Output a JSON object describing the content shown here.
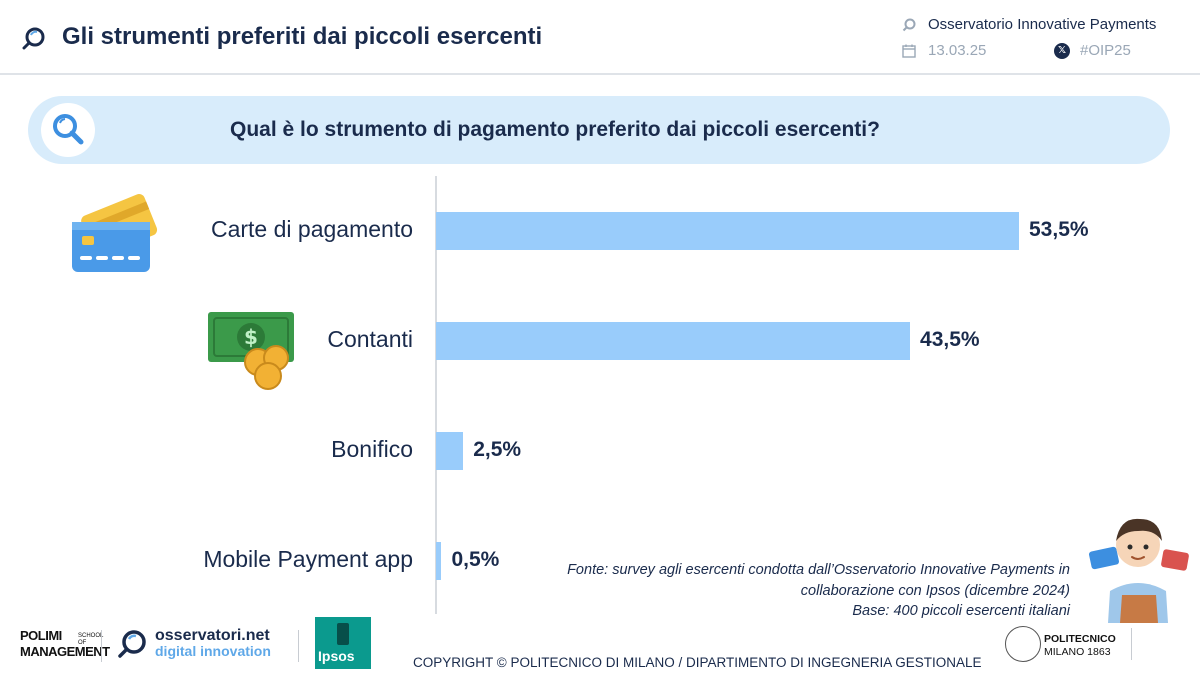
{
  "header": {
    "title": "Gli strumenti preferiti dai piccoli esercenti",
    "observatory": "Osservatorio Innovative Payments",
    "date": "13.03.25",
    "hashtag": "#OIP25"
  },
  "question": "Qual è lo strumento di pagamento preferito dai piccoli esercenti?",
  "chart_data": {
    "type": "bar",
    "orientation": "horizontal",
    "categories": [
      "Carte di pagamento",
      "Contanti",
      "Bonifico",
      "Mobile Payment app"
    ],
    "values": [
      53.5,
      43.5,
      2.5,
      0.5
    ],
    "value_labels": [
      "53,5%",
      "43,5%",
      "2,5%",
      "0,5%"
    ],
    "unit": "%",
    "bar_color": "#99ccfb",
    "grid": false
  },
  "note": {
    "source": "Fonte: survey agli esercenti condotta dall’Osservatorio Innovative Payments  in collaborazione con Ipsos (dicembre 2024)",
    "base": "Base: 400 piccoli esercenti italiani"
  },
  "footer": {
    "polimi": "POLIMI MANAGEMENT",
    "polimi_small": "SCHOOL OF",
    "osservatori_1": "osservatori.net",
    "osservatori_2": "digital innovation",
    "ipsos": "Ipsos",
    "copyright": "COPYRIGHT © POLITECNICO DI MILANO / DIPARTIMENTO DI INGEGNERIA GESTIONALE",
    "polito_1": "POLITECNICO",
    "polito_2": "MILANO 1863"
  },
  "icons": {
    "header_logo": "observatory-logo-icon",
    "calendar": "calendar-icon",
    "x": "x-social-icon",
    "question": "magnifier-icon",
    "cat_0": "credit-card-icon",
    "cat_1": "cash-coins-icon",
    "illustration": "merchant-icon"
  },
  "colors": {
    "title": "#1a2b4c",
    "banner": "#d8ecfb",
    "bar": "#99ccfb",
    "muted": "#9aa7b6"
  }
}
